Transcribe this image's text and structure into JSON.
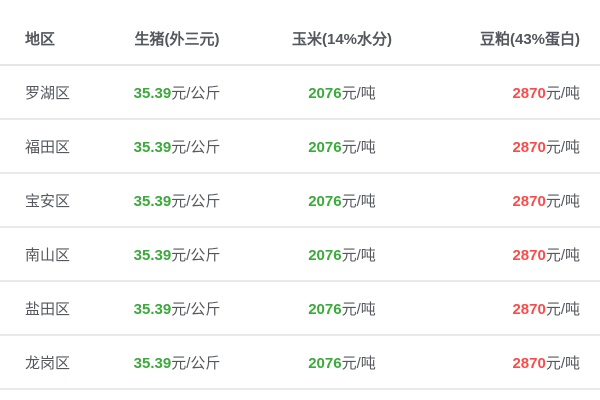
{
  "table": {
    "columns": {
      "region": "地区",
      "pig": "生猪(外三元)",
      "corn": "玉米(14%水分)",
      "soy": "豆粕(43%蛋白)"
    },
    "rows": [
      {
        "region": "罗湖区",
        "pig": {
          "value": "35.39",
          "unit": "元/公斤"
        },
        "corn": {
          "value": "2076",
          "unit": "元/吨"
        },
        "soy": {
          "value": "2870",
          "unit": "元/吨"
        }
      },
      {
        "region": "福田区",
        "pig": {
          "value": "35.39",
          "unit": "元/公斤"
        },
        "corn": {
          "value": "2076",
          "unit": "元/吨"
        },
        "soy": {
          "value": "2870",
          "unit": "元/吨"
        }
      },
      {
        "region": "宝安区",
        "pig": {
          "value": "35.39",
          "unit": "元/公斤"
        },
        "corn": {
          "value": "2076",
          "unit": "元/吨"
        },
        "soy": {
          "value": "2870",
          "unit": "元/吨"
        }
      },
      {
        "region": "南山区",
        "pig": {
          "value": "35.39",
          "unit": "元/公斤"
        },
        "corn": {
          "value": "2076",
          "unit": "元/吨"
        },
        "soy": {
          "value": "2870",
          "unit": "元/吨"
        }
      },
      {
        "region": "盐田区",
        "pig": {
          "value": "35.39",
          "unit": "元/公斤"
        },
        "corn": {
          "value": "2076",
          "unit": "元/吨"
        },
        "soy": {
          "value": "2870",
          "unit": "元/吨"
        }
      },
      {
        "region": "龙岗区",
        "pig": {
          "value": "35.39",
          "unit": "元/公斤"
        },
        "corn": {
          "value": "2076",
          "unit": "元/吨"
        },
        "soy": {
          "value": "2870",
          "unit": "元/吨"
        }
      }
    ]
  },
  "colors": {
    "value_up_red": "#fa4b4b",
    "value_down_green": "#3aaa3a",
    "text": "#55585e",
    "divider": "#e9e9e9",
    "background": "#ffffff"
  }
}
